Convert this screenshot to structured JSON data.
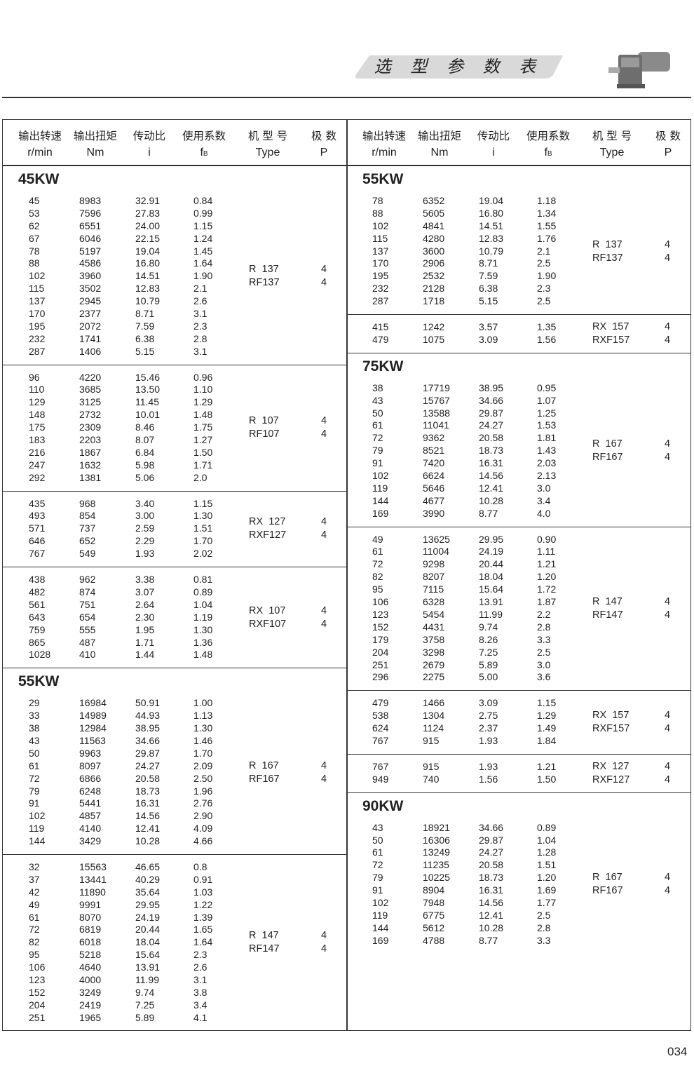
{
  "header": {
    "title": "选 型 参 数 表",
    "image": "gearmotor-icon"
  },
  "columns": {
    "cn": [
      "输出转速",
      "输出扭矩",
      "传动比",
      "使用系数",
      "机 型 号",
      "极  数"
    ],
    "en": [
      "r/min",
      "Nm",
      "i",
      "fB",
      "Type",
      "P"
    ]
  },
  "left": [
    {
      "title": "45KW",
      "types": [
        "R  137",
        "RF137"
      ],
      "poles": [
        "4",
        "4"
      ],
      "rows": [
        [
          "45",
          "8983",
          "32.91",
          "0.84"
        ],
        [
          "53",
          "7596",
          "27.83",
          "0.99"
        ],
        [
          "62",
          "6551",
          "24.00",
          "1.15"
        ],
        [
          "67",
          "6046",
          "22.15",
          "1.24"
        ],
        [
          "78",
          "5197",
          "19.04",
          "1.45"
        ],
        [
          "88",
          "4586",
          "16.80",
          "1.64"
        ],
        [
          "102",
          "3960",
          "14.51",
          "1.90"
        ],
        [
          "115",
          "3502",
          "12.83",
          "2.1"
        ],
        [
          "137",
          "2945",
          "10.79",
          "2.6"
        ],
        [
          "170",
          "2377",
          "8.71",
          "3.1"
        ],
        [
          "195",
          "2072",
          "7.59",
          "2.3"
        ],
        [
          "232",
          "1741",
          "6.38",
          "2.8"
        ],
        [
          "287",
          "1406",
          "5.15",
          "3.1"
        ]
      ]
    },
    {
      "types": [
        "R  107",
        "RF107"
      ],
      "poles": [
        "4",
        "4"
      ],
      "rows": [
        [
          "96",
          "4220",
          "15.46",
          "0.96"
        ],
        [
          "110",
          "3685",
          "13.50",
          "1.10"
        ],
        [
          "129",
          "3125",
          "11.45",
          "1.29"
        ],
        [
          "148",
          "2732",
          "10.01",
          "1.48"
        ],
        [
          "175",
          "2309",
          "8.46",
          "1.75"
        ],
        [
          "183",
          "2203",
          "8.07",
          "1.27"
        ],
        [
          "216",
          "1867",
          "6.84",
          "1.50"
        ],
        [
          "247",
          "1632",
          "5.98",
          "1.71"
        ],
        [
          "292",
          "1381",
          "5.06",
          "2.0"
        ]
      ]
    },
    {
      "types": [
        "RX  127",
        "RXF127"
      ],
      "poles": [
        "4",
        "4"
      ],
      "rows": [
        [
          "435",
          "968",
          "3.40",
          "1.15"
        ],
        [
          "493",
          "854",
          "3.00",
          "1.30"
        ],
        [
          "571",
          "737",
          "2.59",
          "1.51"
        ],
        [
          "646",
          "652",
          "2.29",
          "1.70"
        ],
        [
          "767",
          "549",
          "1.93",
          "2.02"
        ]
      ]
    },
    {
      "types": [
        "RX  107",
        "RXF107"
      ],
      "poles": [
        "4",
        "4"
      ],
      "rows": [
        [
          "438",
          "962",
          "3.38",
          "0.81"
        ],
        [
          "482",
          "874",
          "3.07",
          "0.89"
        ],
        [
          "561",
          "751",
          "2.64",
          "1.04"
        ],
        [
          "643",
          "654",
          "2.30",
          "1.19"
        ],
        [
          "759",
          "555",
          "1.95",
          "1.30"
        ],
        [
          "865",
          "487",
          "1.71",
          "1.36"
        ],
        [
          "1028",
          "410",
          "1.44",
          "1.48"
        ]
      ]
    },
    {
      "title": "55KW",
      "types": [
        "R  167",
        "RF167"
      ],
      "poles": [
        "4",
        "4"
      ],
      "rows": [
        [
          "29",
          "16984",
          "50.91",
          "1.00"
        ],
        [
          "33",
          "14989",
          "44.93",
          "1.13"
        ],
        [
          "38",
          "12984",
          "38.95",
          "1.30"
        ],
        [
          "43",
          "11563",
          "34.66",
          "1.46"
        ],
        [
          "50",
          "9963",
          "29.87",
          "1.70"
        ],
        [
          "61",
          "8097",
          "24.27",
          "2.09"
        ],
        [
          "72",
          "6866",
          "20.58",
          "2.50"
        ],
        [
          "79",
          "6248",
          "18.73",
          "1.96"
        ],
        [
          "91",
          "5441",
          "16.31",
          "2.76"
        ],
        [
          "102",
          "4857",
          "14.56",
          "2.90"
        ],
        [
          "119",
          "4140",
          "12.41",
          "4.09"
        ],
        [
          "144",
          "3429",
          "10.28",
          "4.66"
        ]
      ]
    },
    {
      "types": [
        "R  147",
        "RF147"
      ],
      "poles": [
        "4",
        "4"
      ],
      "rows": [
        [
          "32",
          "15563",
          "46.65",
          "0.8"
        ],
        [
          "37",
          "13441",
          "40.29",
          "0.91"
        ],
        [
          "42",
          "11890",
          "35.64",
          "1.03"
        ],
        [
          "49",
          "9991",
          "29.95",
          "1.22"
        ],
        [
          "61",
          "8070",
          "24.19",
          "1.39"
        ],
        [
          "72",
          "6819",
          "20.44",
          "1.65"
        ],
        [
          "82",
          "6018",
          "18.04",
          "1.64"
        ],
        [
          "95",
          "5218",
          "15.64",
          "2.3"
        ],
        [
          "106",
          "4640",
          "13.91",
          "2.6"
        ],
        [
          "123",
          "4000",
          "11.99",
          "3.1"
        ],
        [
          "152",
          "3249",
          "9.74",
          "3.8"
        ],
        [
          "204",
          "2419",
          "7.25",
          "3.4"
        ],
        [
          "251",
          "1965",
          "5.89",
          "4.1"
        ]
      ]
    }
  ],
  "right": [
    {
      "title": "55KW",
      "types": [
        "R  137",
        "RF137"
      ],
      "poles": [
        "4",
        "4"
      ],
      "rows": [
        [
          "78",
          "6352",
          "19.04",
          "1.18"
        ],
        [
          "88",
          "5605",
          "16.80",
          "1.34"
        ],
        [
          "102",
          "4841",
          "14.51",
          "1.55"
        ],
        [
          "115",
          "4280",
          "12.83",
          "1.76"
        ],
        [
          "137",
          "3600",
          "10.79",
          "2.1"
        ],
        [
          "170",
          "2906",
          "8.71",
          "2.5"
        ],
        [
          "195",
          "2532",
          "7.59",
          "1.90"
        ],
        [
          "232",
          "2128",
          "6.38",
          "2.3"
        ],
        [
          "287",
          "1718",
          "5.15",
          "2.5"
        ]
      ]
    },
    {
      "types": [
        "RX  157",
        "RXF157"
      ],
      "poles": [
        "4",
        "4"
      ],
      "rows": [
        [
          "415",
          "1242",
          "3.57",
          "1.35"
        ],
        [
          "479",
          "1075",
          "3.09",
          "1.56"
        ]
      ]
    },
    {
      "title": "75KW",
      "types": [
        "R  167",
        "RF167"
      ],
      "poles": [
        "4",
        "4"
      ],
      "rows": [
        [
          "38",
          "17719",
          "38.95",
          "0.95"
        ],
        [
          "43",
          "15767",
          "34.66",
          "1.07"
        ],
        [
          "50",
          "13588",
          "29.87",
          "1.25"
        ],
        [
          "61",
          "11041",
          "24.27",
          "1.53"
        ],
        [
          "72",
          "9362",
          "20.58",
          "1.81"
        ],
        [
          "79",
          "8521",
          "18.73",
          "1.43"
        ],
        [
          "91",
          "7420",
          "16.31",
          "2.03"
        ],
        [
          "102",
          "6624",
          "14.56",
          "2.13"
        ],
        [
          "119",
          "5646",
          "12.41",
          "3.0"
        ],
        [
          "144",
          "4677",
          "10.28",
          "3.4"
        ],
        [
          "169",
          "3990",
          "8.77",
          "4.0"
        ]
      ]
    },
    {
      "types": [
        "R  147",
        "RF147"
      ],
      "poles": [
        "4",
        "4"
      ],
      "rows": [
        [
          "49",
          "13625",
          "29.95",
          "0.90"
        ],
        [
          "61",
          "11004",
          "24.19",
          "1.11"
        ],
        [
          "72",
          "9298",
          "20.44",
          "1.21"
        ],
        [
          "82",
          "8207",
          "18.04",
          "1.20"
        ],
        [
          "95",
          "7115",
          "15.64",
          "1.72"
        ],
        [
          "106",
          "6328",
          "13.91",
          "1.87"
        ],
        [
          "123",
          "5454",
          "11.99",
          "2.2"
        ],
        [
          "152",
          "4431",
          "9.74",
          "2.8"
        ],
        [
          "179",
          "3758",
          "8.26",
          "3.3"
        ],
        [
          "204",
          "3298",
          "7.25",
          "2.5"
        ],
        [
          "251",
          "2679",
          "5.89",
          "3.0"
        ],
        [
          "296",
          "2275",
          "5.00",
          "3.6"
        ]
      ]
    },
    {
      "types": [
        "RX  157",
        "RXF157"
      ],
      "poles": [
        "4",
        "4"
      ],
      "rows": [
        [
          "479",
          "1466",
          "3.09",
          "1.15"
        ],
        [
          "538",
          "1304",
          "2.75",
          "1.29"
        ],
        [
          "624",
          "1124",
          "2.37",
          "1.49"
        ],
        [
          "767",
          "915",
          "1.93",
          "1.84"
        ]
      ]
    },
    {
      "types": [
        "RX  127",
        "RXF127"
      ],
      "poles": [
        "4",
        "4"
      ],
      "rows": [
        [
          "767",
          "915",
          "1.93",
          "1.21"
        ],
        [
          "949",
          "740",
          "1.56",
          "1.50"
        ]
      ]
    },
    {
      "title": "90KW",
      "types": [
        "R  167",
        "RF167"
      ],
      "poles": [
        "4",
        "4"
      ],
      "rows": [
        [
          "43",
          "18921",
          "34.66",
          "0.89"
        ],
        [
          "50",
          "16306",
          "29.87",
          "1.04"
        ],
        [
          "61",
          "13249",
          "24.27",
          "1.28"
        ],
        [
          "72",
          "11235",
          "20.58",
          "1.51"
        ],
        [
          "79",
          "10225",
          "18.73",
          "1.20"
        ],
        [
          "91",
          "8904",
          "16.31",
          "1.69"
        ],
        [
          "102",
          "7948",
          "14.56",
          "1.77"
        ],
        [
          "119",
          "6775",
          "12.41",
          "2.5"
        ],
        [
          "144",
          "5612",
          "10.28",
          "2.8"
        ],
        [
          "169",
          "4788",
          "8.77",
          "3.3"
        ]
      ]
    }
  ],
  "page_number": "034"
}
